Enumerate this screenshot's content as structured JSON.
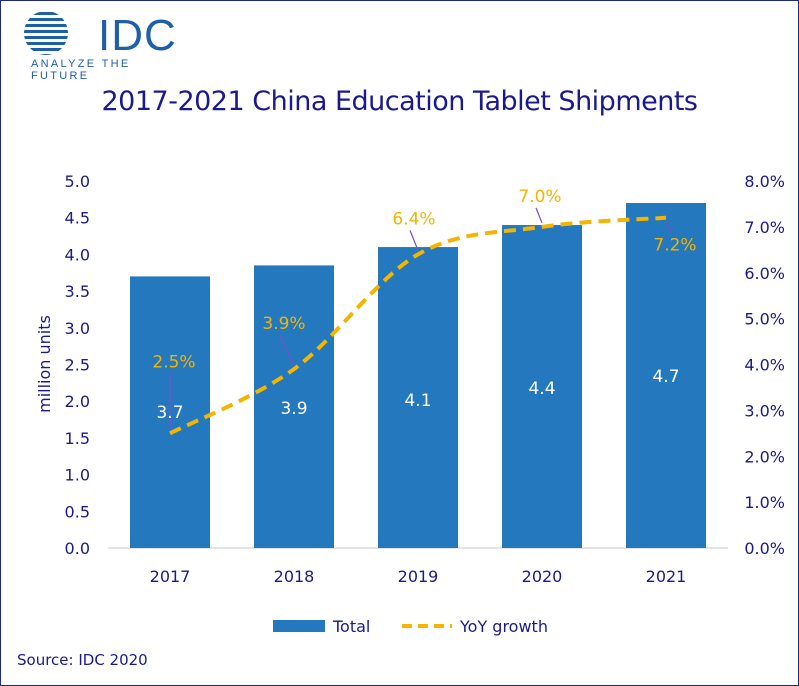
{
  "logo": {
    "name": "IDC",
    "tagline": "ANALYZE THE FUTURE"
  },
  "source": "Source: IDC 2020",
  "colors": {
    "bar": "#2478be",
    "line": "#f4b400",
    "text": "#1a1a8c",
    "label_line": "#7a4fc8"
  },
  "chart_data": {
    "type": "bar",
    "title": "2017-2021 China Education Tablet Shipments",
    "categories": [
      "2017",
      "2018",
      "2019",
      "2020",
      "2021"
    ],
    "series": [
      {
        "name": "Total",
        "type": "bar",
        "axis": "left",
        "values": [
          3.7,
          3.85,
          4.1,
          4.4,
          4.7
        ],
        "labels": [
          "3.7",
          "3.9",
          "4.1",
          "4.4",
          "4.7"
        ]
      },
      {
        "name": "YoY growth",
        "type": "line",
        "style": "dashed",
        "axis": "right",
        "values": [
          2.5,
          3.9,
          6.4,
          7.0,
          7.2
        ],
        "labels": [
          "2.5%",
          "3.9%",
          "6.4%",
          "7.0%",
          "7.2%"
        ]
      }
    ],
    "ylabel": "million units",
    "ylim": [
      0,
      5.0
    ],
    "yticks": [
      "0.0",
      "0.5",
      "1.0",
      "1.5",
      "2.0",
      "2.5",
      "3.0",
      "3.5",
      "4.0",
      "4.5",
      "5.0"
    ],
    "y2lim": [
      0,
      8.0
    ],
    "y2ticks": [
      "0.0%",
      "1.0%",
      "2.0%",
      "3.0%",
      "4.0%",
      "5.0%",
      "6.0%",
      "7.0%",
      "8.0%"
    ],
    "legend": [
      "Total",
      "YoY growth"
    ],
    "legend_position": "bottom"
  }
}
